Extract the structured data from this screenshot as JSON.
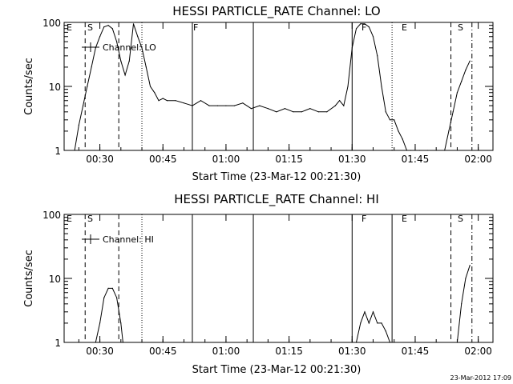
{
  "chart_data": [
    {
      "type": "line",
      "title": "HESSI PARTICLE_RATE Channel: LO",
      "xlabel": "Start Time (23-Mar-12 00:21:30)",
      "ylabel": "Counts/sec",
      "yscale": "log",
      "ylim": [
        1,
        100
      ],
      "xlim": [
        "00:21:30",
        "02:03:30"
      ],
      "y_ticks": [
        "1",
        "10",
        "100"
      ],
      "x_ticks": [
        "00:30",
        "00:45",
        "01:00",
        "01:15",
        "01:30",
        "01:45",
        "02:00"
      ],
      "legend": "top-left",
      "grid": false,
      "series": [
        {
          "name": "Channel: LO",
          "x": [
            "00:24:00",
            "00:25:00",
            "00:26:00",
            "00:27:00",
            "00:28:00",
            "00:29:00",
            "00:30:00",
            "00:31:00",
            "00:32:00",
            "00:33:00",
            "00:34:00",
            "00:35:00",
            "00:36:00",
            "00:37:00",
            "00:38:00",
            "00:39:00",
            "00:40:00",
            "00:41:00",
            "00:42:00",
            "00:43:00",
            "00:44:00",
            "00:45:00",
            "00:46:00",
            "00:48:00",
            "00:50:00",
            "00:52:00",
            "00:54:00",
            "00:56:00",
            "00:58:00",
            "01:00:00",
            "01:02:00",
            "01:04:00",
            "01:06:00",
            "01:08:00",
            "01:10:00",
            "01:12:00",
            "01:14:00",
            "01:16:00",
            "01:18:00",
            "01:20:00",
            "01:22:00",
            "01:24:00",
            "01:26:00",
            "01:27:00",
            "01:28:00",
            "01:29:00",
            "01:30:00",
            "01:31:00",
            "01:32:00",
            "01:33:00",
            "01:34:00",
            "01:35:00",
            "01:36:00",
            "01:37:00",
            "01:38:00",
            "01:39:00",
            "01:40:00",
            "01:41:00",
            "01:42:00",
            "01:43:00",
            "01:44:00",
            "01:46:00",
            "01:48:00",
            "01:50:00",
            "01:52:00",
            "01:53:00",
            "01:54:00",
            "01:55:00",
            "01:56:00",
            "01:57:00",
            "01:58:00"
          ],
          "y": [
            1,
            2.5,
            5,
            10,
            20,
            40,
            60,
            85,
            90,
            80,
            50,
            25,
            15,
            25,
            95,
            60,
            40,
            20,
            10,
            8,
            6,
            6.5,
            6,
            6,
            5.5,
            5,
            6,
            5,
            5,
            5,
            5,
            5.5,
            4.5,
            5,
            4.5,
            4,
            4.5,
            4,
            4,
            4.5,
            4,
            4,
            5,
            6,
            5,
            10,
            40,
            80,
            95,
            95,
            85,
            60,
            30,
            10,
            4,
            3,
            3,
            2,
            1.5,
            1,
            1,
            1,
            1,
            1,
            1,
            2,
            4,
            8,
            12,
            18,
            25
          ]
        }
      ],
      "annotations": [
        "E",
        "S",
        "F",
        "F",
        "E",
        "S"
      ]
    },
    {
      "type": "line",
      "title": "HESSI PARTICLE_RATE Channel: HI",
      "xlabel": "Start Time (23-Mar-12 00:21:30)",
      "ylabel": "Counts/sec",
      "yscale": "log",
      "ylim": [
        1,
        100
      ],
      "xlim": [
        "00:21:30",
        "02:03:30"
      ],
      "y_ticks": [
        "1",
        "10",
        "100"
      ],
      "x_ticks": [
        "00:30",
        "00:45",
        "01:00",
        "01:15",
        "01:30",
        "01:45",
        "02:00"
      ],
      "legend": "top-left",
      "grid": false,
      "series": [
        {
          "name": "Channel: HI",
          "x": [
            "00:29:00",
            "00:30:00",
            "00:31:00",
            "00:32:00",
            "00:33:00",
            "00:34:00",
            "00:35:00",
            "00:35:30",
            "01:31:00",
            "01:32:00",
            "01:33:00",
            "01:34:00",
            "01:35:00",
            "01:36:00",
            "01:37:00",
            "01:38:00",
            "01:39:00",
            "01:55:00",
            "01:56:00",
            "01:57:00",
            "01:58:00"
          ],
          "y": [
            1,
            2,
            5,
            7,
            7,
            5,
            2,
            1,
            1,
            2,
            3,
            2,
            3,
            2,
            2,
            1.5,
            1,
            1,
            4,
            10,
            16
          ]
        }
      ],
      "annotations": [
        "E",
        "S",
        "F",
        "E",
        "S"
      ]
    }
  ],
  "timestamp": "23-Mar-2012 17:09"
}
